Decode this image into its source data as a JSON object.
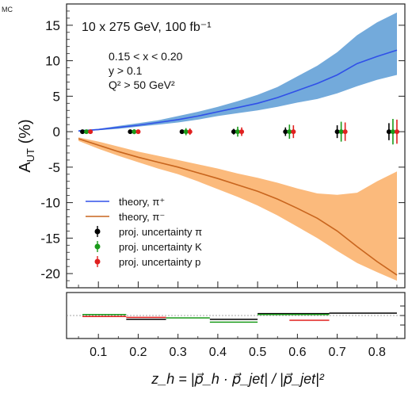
{
  "corner_text": "MC",
  "chart_data": {
    "type": "line",
    "title": "10 x 275 GeV, 100 fb⁻¹",
    "cuts": [
      "0.15 < x < 0.20",
      "y > 0.1",
      "Q² > 50 GeV²"
    ],
    "xlabel": "z_h = |p⃗_h · p⃗_jet| / |p⃗_jet|²",
    "ylabel": "A_UT (%)",
    "xlim": [
      0.02,
      0.87
    ],
    "ylim": [
      -22,
      18
    ],
    "xticks": [
      "0.1",
      "0.2",
      "0.3",
      "0.4",
      "0.5",
      "0.6",
      "0.7",
      "0.8"
    ],
    "yticks": [
      "15",
      "10",
      "5",
      "0",
      "-5",
      "-10",
      "-15",
      "-20"
    ],
    "grid": false,
    "legend_position": "bottom-left",
    "colors": {
      "pi_plus": "#3050e8",
      "pi_plus_band": "#5b9bd5",
      "pi_minus": "#c8651e",
      "pi_minus_band": "#fbb36e",
      "pion": "#000000",
      "kaon": "#1a9a1a",
      "proton": "#e0201f"
    },
    "series": [
      {
        "name": "theory, π⁺",
        "kind": "theory",
        "x": [
          0.05,
          0.1,
          0.15,
          0.2,
          0.25,
          0.3,
          0.35,
          0.4,
          0.45,
          0.5,
          0.55,
          0.6,
          0.65,
          0.7,
          0.75,
          0.8,
          0.85
        ],
        "y": [
          0.1,
          0.3,
          0.6,
          0.9,
          1.3,
          1.7,
          2.2,
          2.8,
          3.4,
          4.0,
          4.8,
          5.8,
          6.8,
          8.0,
          9.6,
          10.6,
          11.5
        ],
        "band_low": [
          0.0,
          0.2,
          0.4,
          0.7,
          1.0,
          1.3,
          1.7,
          2.2,
          2.6,
          3.0,
          3.5,
          4.1,
          4.6,
          5.4,
          6.4,
          7.3,
          8.0
        ],
        "band_high": [
          0.2,
          0.4,
          0.8,
          1.2,
          1.6,
          2.2,
          2.8,
          3.5,
          4.3,
          5.2,
          6.3,
          7.8,
          9.3,
          11.2,
          13.6,
          15.4,
          16.8
        ]
      },
      {
        "name": "theory, π⁻",
        "kind": "theory",
        "x": [
          0.05,
          0.1,
          0.15,
          0.2,
          0.25,
          0.3,
          0.35,
          0.4,
          0.45,
          0.5,
          0.55,
          0.6,
          0.65,
          0.7,
          0.75,
          0.8,
          0.85
        ],
        "y": [
          -1.0,
          -1.9,
          -2.8,
          -3.6,
          -4.3,
          -5.0,
          -5.8,
          -6.6,
          -7.5,
          -8.4,
          -9.5,
          -10.8,
          -12.2,
          -14.0,
          -16.2,
          -18.3,
          -20.2
        ],
        "band_low": [
          -1.3,
          -2.4,
          -3.4,
          -4.3,
          -5.2,
          -6.0,
          -7.0,
          -8.1,
          -9.2,
          -10.4,
          -11.8,
          -13.4,
          -15.0,
          -16.8,
          -18.5,
          -19.8,
          -21.0
        ],
        "band_high": [
          -0.8,
          -1.4,
          -2.1,
          -2.8,
          -3.4,
          -4.0,
          -4.6,
          -5.2,
          -5.9,
          -6.5,
          -7.2,
          -8.0,
          -8.7,
          -8.9,
          -8.6,
          -7.0,
          -5.6
        ]
      },
      {
        "name": "proj. uncertainty π",
        "kind": "projection",
        "offset": -0.01,
        "x": [
          0.07,
          0.19,
          0.32,
          0.45,
          0.58,
          0.71,
          0.84
        ],
        "y": [
          0,
          0,
          0,
          0,
          0,
          0,
          0
        ],
        "err": [
          0.15,
          0.2,
          0.3,
          0.4,
          0.6,
          0.9,
          1.2
        ]
      },
      {
        "name": "proj. uncertainty K",
        "kind": "projection",
        "offset": 0.0,
        "x": [
          0.07,
          0.19,
          0.32,
          0.45,
          0.58,
          0.71,
          0.84
        ],
        "y": [
          0,
          0,
          0,
          0,
          0,
          0,
          0
        ],
        "err": [
          0.25,
          0.35,
          0.5,
          0.7,
          1.0,
          1.4,
          1.8
        ]
      },
      {
        "name": "proj. uncertainty p",
        "kind": "projection",
        "offset": 0.01,
        "x": [
          0.07,
          0.19,
          0.32,
          0.45,
          0.58,
          0.71,
          0.84
        ],
        "y": [
          0,
          0,
          0,
          0,
          0,
          0,
          0
        ],
        "err": [
          0.2,
          0.3,
          0.45,
          0.6,
          0.9,
          1.3,
          1.7
        ]
      }
    ],
    "ratio_panel": {
      "segments": [
        {
          "color": "#1a9a1a",
          "x": [
            0.06,
            0.17
          ],
          "y": 0.02
        },
        {
          "color": "#000000",
          "x": [
            0.17,
            0.27
          ],
          "y": -0.08
        },
        {
          "color": "#1a9a1a",
          "x": [
            0.27,
            0.38
          ],
          "y": -0.05
        },
        {
          "color": "#000000",
          "x": [
            0.38,
            0.5
          ],
          "y": -0.08
        },
        {
          "color": "#1a9a1a",
          "x": [
            0.38,
            0.5
          ],
          "y": -0.14
        },
        {
          "color": "#000000",
          "x": [
            0.5,
            0.68
          ],
          "y": 0.04
        },
        {
          "color": "#1a9a1a",
          "x": [
            0.5,
            0.68
          ],
          "y": 0.02
        },
        {
          "color": "#e0201f",
          "x": [
            0.58,
            0.68
          ],
          "y": -0.1
        },
        {
          "color": "#000000",
          "x": [
            0.68,
            0.85
          ],
          "y": 0.05
        },
        {
          "color": "#e0201f",
          "x": [
            0.17,
            0.27
          ],
          "y": -0.04
        },
        {
          "color": "#e0201f",
          "x": [
            0.06,
            0.17
          ],
          "y": -0.02
        }
      ]
    }
  }
}
